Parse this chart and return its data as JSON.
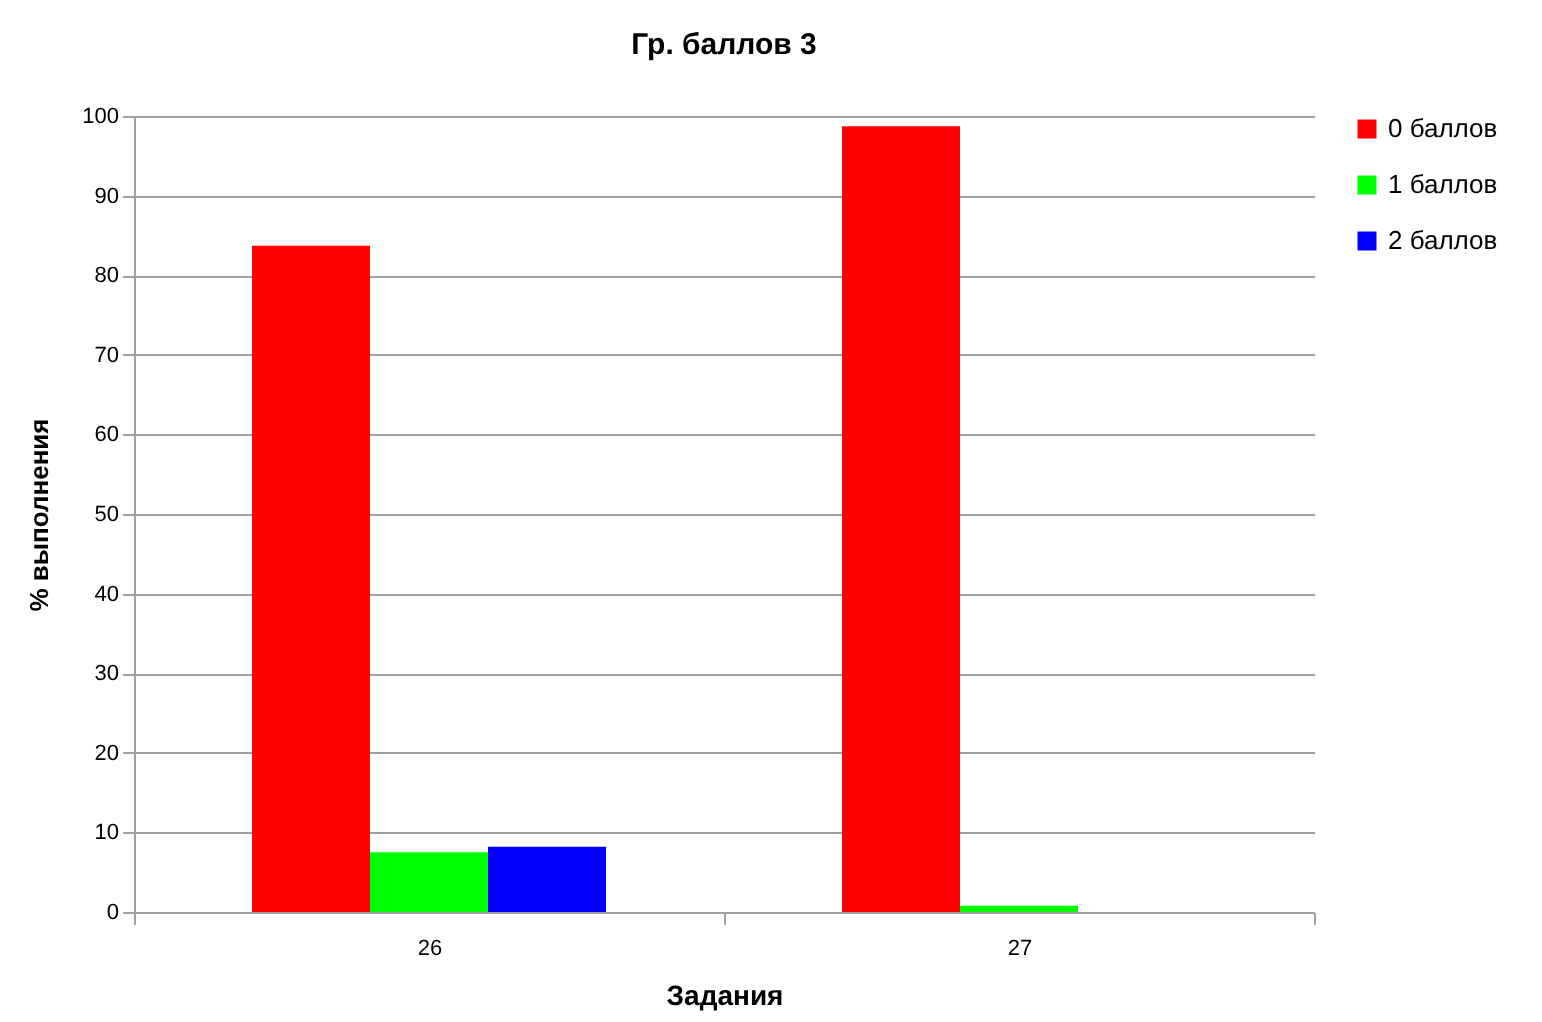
{
  "chart_data": {
    "type": "bar",
    "title": "Гр. баллов 3",
    "xlabel": "Задания",
    "ylabel": "% выполнения",
    "categories": [
      "26",
      "27"
    ],
    "series": [
      {
        "name": "0 баллов",
        "color": "#ff0000",
        "values": [
          83.7,
          98.7
        ]
      },
      {
        "name": "1 баллов",
        "color": "#00ff00",
        "values": [
          7.5,
          0.8
        ]
      },
      {
        "name": "2 баллов",
        "color": "#0000ff",
        "values": [
          8.2,
          0
        ]
      }
    ],
    "ylim": [
      0,
      100
    ],
    "yticks": [
      0,
      10,
      20,
      30,
      40,
      50,
      60,
      70,
      80,
      90,
      100
    ],
    "grid": "y",
    "legend": "right"
  }
}
